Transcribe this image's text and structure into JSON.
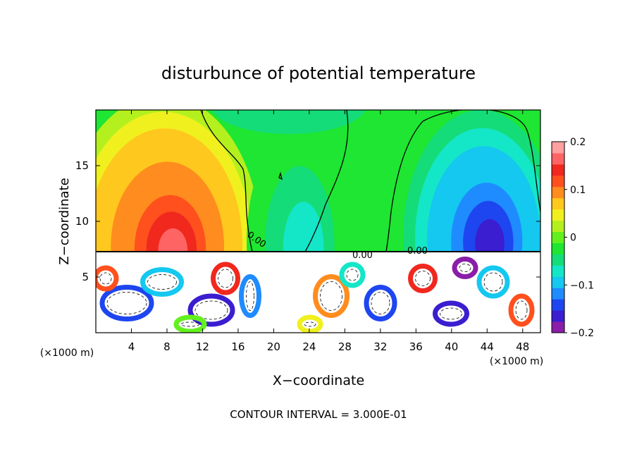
{
  "chart_data": {
    "type": "heatmap",
    "title": "disturbunce of potential temperature",
    "xlabel": "X−coordinate",
    "ylabel": "Z−coordinate",
    "x_unit": "(×1000 m)",
    "y_unit": "(×1000 m)",
    "xlim": [
      0,
      50
    ],
    "ylim": [
      0,
      20
    ],
    "x_ticks": [
      4,
      8,
      12,
      16,
      20,
      24,
      28,
      32,
      36,
      40,
      44,
      48
    ],
    "y_ticks": [
      5,
      10,
      15
    ],
    "colorbar": {
      "min": -0.2,
      "max": 0.2,
      "tick_values": [
        0.2,
        0.1,
        0,
        -0.1,
        -0.2
      ],
      "tick_labels": [
        "0.2",
        "0.1",
        "0",
        "−0.1",
        "−0.2"
      ],
      "colors": [
        "#8a1ea8",
        "#3a1ed0",
        "#1e46f0",
        "#1e8cff",
        "#14c8f0",
        "#14e6c8",
        "#14dc78",
        "#1ee632",
        "#64f01e",
        "#b4f01e",
        "#f0f01e",
        "#ffc81e",
        "#ff8c1e",
        "#ff501e",
        "#f0281e",
        "#ff6464",
        "#ffa0a0"
      ]
    },
    "contour_labels": [
      "0.00",
      "0.00",
      "0.00"
    ],
    "contour_interval_text": "CONTOUR INTERVAL = 3.000E-01"
  }
}
